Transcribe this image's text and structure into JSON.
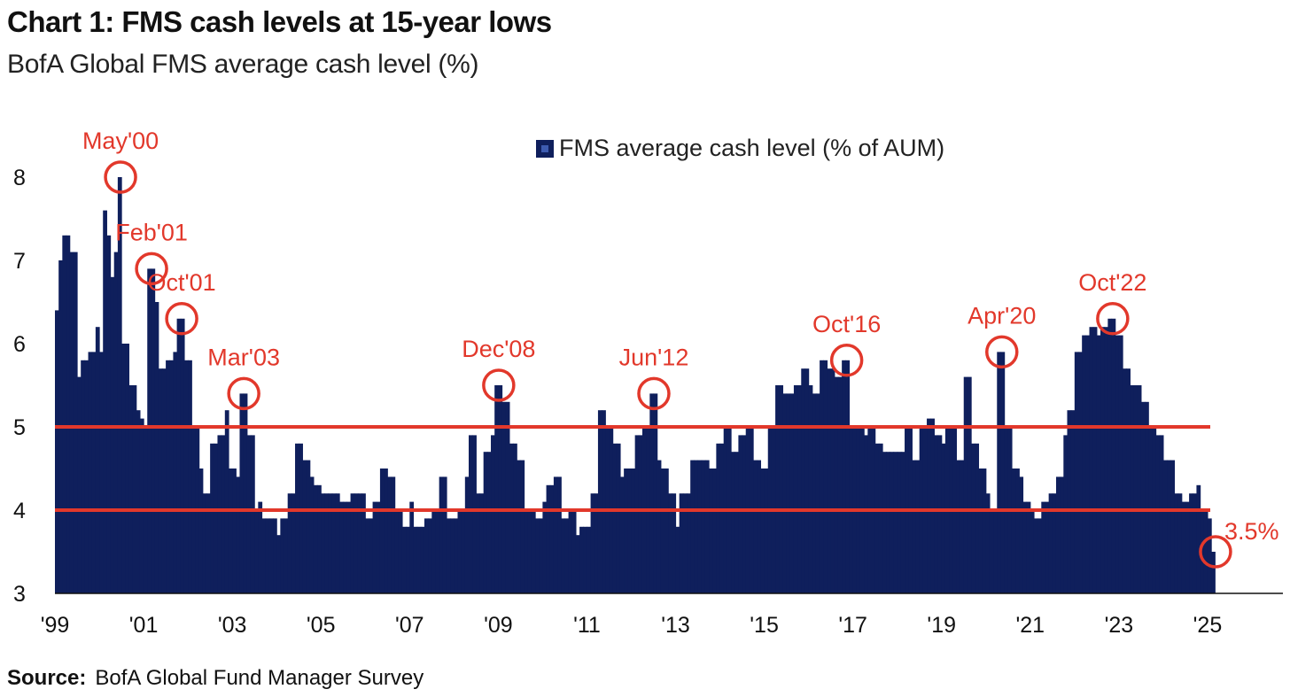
{
  "header": {
    "title": "Chart 1: FMS cash levels at 15-year lows",
    "subtitle": "BofA Global FMS average cash level (%)"
  },
  "footer": {
    "source_label": "Source:",
    "source_text": "BofA Global Fund Manager Survey"
  },
  "colors": {
    "bar": "#0f1f5c",
    "reference_line": "#e2382b",
    "annotation": "#e2382b",
    "baseline": "#111111"
  },
  "chart_data": {
    "type": "bar",
    "title": "Chart 1: FMS cash levels at 15-year lows",
    "subtitle": "BofA Global FMS average cash level (%)",
    "xlabel": "",
    "ylabel": "",
    "ylim": [
      3,
      8.3
    ],
    "yticks": [
      "3",
      "4",
      "5",
      "6",
      "7",
      "8"
    ],
    "xticks": [
      "'99",
      "'01",
      "'03",
      "'05",
      "'07",
      "'09",
      "'11",
      "'13",
      "'15",
      "'17",
      "'19",
      "'21",
      "'23",
      "'25"
    ],
    "xrange_years": [
      1999.0,
      2026.7
    ],
    "grid": false,
    "legend_position": "top-center",
    "series": [
      {
        "name": "FMS average cash level (% of AUM)",
        "keypoints": [
          [
            1999.0,
            6.4
          ],
          [
            1999.1,
            7.0
          ],
          [
            1999.2,
            7.3
          ],
          [
            1999.35,
            7.1
          ],
          [
            1999.5,
            5.6
          ],
          [
            1999.6,
            5.8
          ],
          [
            1999.8,
            5.9
          ],
          [
            1999.95,
            6.2
          ],
          [
            2000.0,
            5.9
          ],
          [
            2000.1,
            7.6
          ],
          [
            2000.2,
            7.3
          ],
          [
            2000.25,
            6.8
          ],
          [
            2000.35,
            7.1
          ],
          [
            2000.42,
            8.0
          ],
          [
            2000.55,
            6.0
          ],
          [
            2000.7,
            5.5
          ],
          [
            2000.8,
            5.2
          ],
          [
            2000.9,
            5.1
          ],
          [
            2001.0,
            5.0
          ],
          [
            2001.12,
            6.9
          ],
          [
            2001.25,
            6.5
          ],
          [
            2001.4,
            5.7
          ],
          [
            2001.55,
            5.8
          ],
          [
            2001.67,
            5.9
          ],
          [
            2001.8,
            6.3
          ],
          [
            2001.95,
            5.8
          ],
          [
            2002.1,
            5.0
          ],
          [
            2002.25,
            4.5
          ],
          [
            2002.4,
            4.2
          ],
          [
            2002.55,
            4.8
          ],
          [
            2002.7,
            4.9
          ],
          [
            2002.85,
            5.2
          ],
          [
            2002.95,
            4.5
          ],
          [
            2003.05,
            4.4
          ],
          [
            2003.2,
            5.4
          ],
          [
            2003.35,
            4.9
          ],
          [
            2003.5,
            4.0
          ],
          [
            2003.6,
            4.1
          ],
          [
            2003.7,
            3.9
          ],
          [
            2003.85,
            3.9
          ],
          [
            2004.0,
            3.7
          ],
          [
            2004.15,
            3.9
          ],
          [
            2004.3,
            4.2
          ],
          [
            2004.45,
            4.8
          ],
          [
            2004.6,
            4.6
          ],
          [
            2004.75,
            4.4
          ],
          [
            2004.9,
            4.3
          ],
          [
            2005.05,
            4.2
          ],
          [
            2005.3,
            4.2
          ],
          [
            2005.5,
            4.1
          ],
          [
            2005.7,
            4.2
          ],
          [
            2005.85,
            4.2
          ],
          [
            2006.0,
            3.9
          ],
          [
            2006.2,
            4.1
          ],
          [
            2006.35,
            4.5
          ],
          [
            2006.5,
            4.4
          ],
          [
            2006.7,
            4.0
          ],
          [
            2006.85,
            3.8
          ],
          [
            2007.0,
            4.1
          ],
          [
            2007.15,
            3.8
          ],
          [
            2007.35,
            3.9
          ],
          [
            2007.55,
            4.0
          ],
          [
            2007.7,
            4.4
          ],
          [
            2007.9,
            3.9
          ],
          [
            2008.1,
            4.0
          ],
          [
            2008.25,
            4.4
          ],
          [
            2008.4,
            4.9
          ],
          [
            2008.55,
            4.2
          ],
          [
            2008.7,
            4.7
          ],
          [
            2008.8,
            4.9
          ],
          [
            2008.95,
            5.5
          ],
          [
            2009.1,
            5.3
          ],
          [
            2009.3,
            4.8
          ],
          [
            2009.45,
            4.6
          ],
          [
            2009.6,
            4.0
          ],
          [
            2009.75,
            4.0
          ],
          [
            2009.85,
            3.9
          ],
          [
            2010.0,
            4.1
          ],
          [
            2010.15,
            4.3
          ],
          [
            2010.3,
            4.4
          ],
          [
            2010.45,
            3.9
          ],
          [
            2010.6,
            4.0
          ],
          [
            2010.75,
            3.7
          ],
          [
            2010.9,
            3.8
          ],
          [
            2011.1,
            4.2
          ],
          [
            2011.3,
            5.2
          ],
          [
            2011.45,
            5.0
          ],
          [
            2011.6,
            4.8
          ],
          [
            2011.75,
            4.4
          ],
          [
            2011.9,
            4.5
          ],
          [
            2012.1,
            4.9
          ],
          [
            2012.25,
            5.0
          ],
          [
            2012.45,
            5.4
          ],
          [
            2012.55,
            4.6
          ],
          [
            2012.7,
            4.5
          ],
          [
            2012.85,
            4.2
          ],
          [
            2013.0,
            3.8
          ],
          [
            2013.15,
            4.2
          ],
          [
            2013.35,
            4.6
          ],
          [
            2013.6,
            4.6
          ],
          [
            2013.8,
            4.5
          ],
          [
            2013.95,
            4.8
          ],
          [
            2014.15,
            5.0
          ],
          [
            2014.3,
            4.7
          ],
          [
            2014.5,
            4.9
          ],
          [
            2014.65,
            5.0
          ],
          [
            2014.8,
            4.6
          ],
          [
            2014.95,
            4.5
          ],
          [
            2015.15,
            5.0
          ],
          [
            2015.3,
            5.5
          ],
          [
            2015.5,
            5.4
          ],
          [
            2015.7,
            5.5
          ],
          [
            2015.85,
            5.7
          ],
          [
            2016.0,
            5.5
          ],
          [
            2016.15,
            5.4
          ],
          [
            2016.3,
            5.8
          ],
          [
            2016.45,
            5.7
          ],
          [
            2016.6,
            5.6
          ],
          [
            2016.8,
            5.8
          ],
          [
            2016.95,
            5.0
          ],
          [
            2017.1,
            5.0
          ],
          [
            2017.25,
            4.9
          ],
          [
            2017.4,
            5.0
          ],
          [
            2017.55,
            4.8
          ],
          [
            2017.7,
            4.7
          ],
          [
            2017.85,
            4.7
          ],
          [
            2018.0,
            4.7
          ],
          [
            2018.2,
            5.0
          ],
          [
            2018.35,
            4.6
          ],
          [
            2018.5,
            5.0
          ],
          [
            2018.7,
            5.1
          ],
          [
            2018.85,
            4.9
          ],
          [
            2019.0,
            4.8
          ],
          [
            2019.15,
            5.0
          ],
          [
            2019.35,
            4.6
          ],
          [
            2019.5,
            5.6
          ],
          [
            2019.7,
            4.8
          ],
          [
            2019.85,
            4.5
          ],
          [
            2020.0,
            4.2
          ],
          [
            2020.15,
            4.0
          ],
          [
            2020.3,
            5.9
          ],
          [
            2020.45,
            5.0
          ],
          [
            2020.6,
            4.5
          ],
          [
            2020.75,
            4.4
          ],
          [
            2020.9,
            4.1
          ],
          [
            2021.0,
            4.0
          ],
          [
            2021.1,
            3.9
          ],
          [
            2021.3,
            4.1
          ],
          [
            2021.45,
            4.2
          ],
          [
            2021.6,
            4.4
          ],
          [
            2021.75,
            4.9
          ],
          [
            2021.9,
            5.2
          ],
          [
            2022.05,
            5.9
          ],
          [
            2022.2,
            6.1
          ],
          [
            2022.35,
            6.2
          ],
          [
            2022.5,
            6.1
          ],
          [
            2022.65,
            6.2
          ],
          [
            2022.8,
            6.3
          ],
          [
            2022.95,
            6.1
          ],
          [
            2023.1,
            5.7
          ],
          [
            2023.25,
            5.5
          ],
          [
            2023.4,
            5.5
          ],
          [
            2023.55,
            5.3
          ],
          [
            2023.7,
            5.0
          ],
          [
            2023.85,
            4.9
          ],
          [
            2024.0,
            4.6
          ],
          [
            2024.15,
            4.6
          ],
          [
            2024.3,
            4.2
          ],
          [
            2024.45,
            4.1
          ],
          [
            2024.6,
            4.2
          ],
          [
            2024.75,
            4.3
          ],
          [
            2024.9,
            4.0
          ],
          [
            2025.0,
            3.9
          ],
          [
            2025.12,
            3.5
          ]
        ]
      }
    ],
    "reference_lines": [
      {
        "y": 5
      },
      {
        "y": 4
      }
    ],
    "annotations": [
      {
        "label": "May'00",
        "x": 2000.42,
        "y": 8.0
      },
      {
        "label": "Feb'01",
        "x": 2001.12,
        "y": 6.9
      },
      {
        "label": "Oct'01",
        "x": 2001.8,
        "y": 6.3
      },
      {
        "label": "Mar'03",
        "x": 2003.2,
        "y": 5.4
      },
      {
        "label": "Dec'08",
        "x": 2008.95,
        "y": 5.5
      },
      {
        "label": "Jun'12",
        "x": 2012.45,
        "y": 5.4
      },
      {
        "label": "Oct'16",
        "x": 2016.8,
        "y": 5.8
      },
      {
        "label": "Apr'20",
        "x": 2020.3,
        "y": 5.9
      },
      {
        "label": "Oct'22",
        "x": 2022.8,
        "y": 6.3
      },
      {
        "label": "3.5%",
        "x": 2025.12,
        "y": 3.5
      }
    ]
  }
}
